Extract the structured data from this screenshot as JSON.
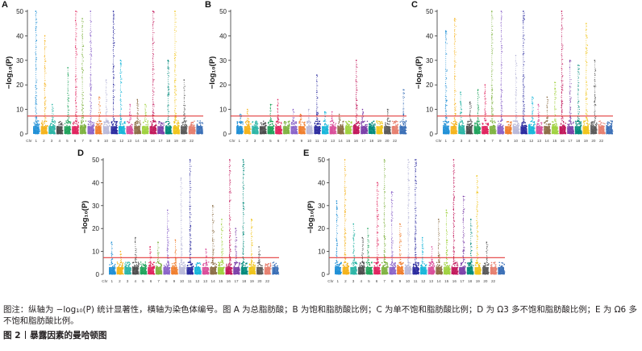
{
  "caption": "图注：纵轴为 −log₁₀(P) 统计显著性，横轴为染色体编号。图 A 为总脂肪酸；B 为饱和脂肪酸比例；C 为单不饱和脂肪酸比例；D 为 Ω3 多不饱和脂肪酸比例；E 为 Ω6 多不饱和脂肪酸比例。",
  "figure_label": "图 2",
  "figure_title": "暴露因素的曼哈顿图",
  "colors": {
    "threshold": "#e23b3b",
    "palette": [
      "#1f8fd6",
      "#f5b21b",
      "#2bb5a6",
      "#4c4c4c",
      "#1fa35c",
      "#e0245e",
      "#7fb241",
      "#8a63c9",
      "#f07e2e",
      "#b9b9d9",
      "#2a2a9e",
      "#17b6d9",
      "#d94e9a",
      "#8c6e46",
      "#9fd13e",
      "#c2185b",
      "#7b3fa8",
      "#00897b",
      "#f0c419",
      "#5a5a5a",
      "#e67e6e",
      "#3b6fb6"
    ]
  },
  "chart_data": [
    {
      "type": "scatter",
      "panel": "A",
      "ylabel": "−log₁₀(P)",
      "ylim": [
        0,
        50
      ],
      "yticks": [
        "0",
        "10",
        "20",
        "30",
        "40",
        "50"
      ],
      "xticks": [
        "Chr",
        "1",
        "2",
        "3",
        "4",
        "5",
        "6",
        "7",
        "8",
        "9",
        "10",
        "11",
        "12",
        "13",
        "14",
        "15",
        "16",
        "17",
        "18",
        "19",
        "20",
        "22"
      ],
      "threshold": 7.3,
      "peaks": [
        {
          "chr": 1,
          "value": 50
        },
        {
          "chr": 2,
          "value": 40
        },
        {
          "chr": 3,
          "value": 12
        },
        {
          "chr": 5,
          "value": 27
        },
        {
          "chr": 6,
          "value": 50
        },
        {
          "chr": 7,
          "value": 47
        },
        {
          "chr": 8,
          "value": 50
        },
        {
          "chr": 9,
          "value": 15
        },
        {
          "chr": 10,
          "value": 22
        },
        {
          "chr": 11,
          "value": 50
        },
        {
          "chr": 12,
          "value": 30
        },
        {
          "chr": 13,
          "value": 12
        },
        {
          "chr": 14,
          "value": 14
        },
        {
          "chr": 15,
          "value": 12
        },
        {
          "chr": 16,
          "value": 50
        },
        {
          "chr": 18,
          "value": 30
        },
        {
          "chr": 19,
          "value": 50
        },
        {
          "chr": 20,
          "value": 22
        }
      ]
    },
    {
      "type": "scatter",
      "panel": "B",
      "ylabel": "−log₁₀(P)",
      "ylim": [
        0,
        50
      ],
      "yticks": [
        "0",
        "10",
        "20",
        "30",
        "40",
        "50"
      ],
      "xticks": [
        "Chr",
        "1",
        "2",
        "3",
        "4",
        "5",
        "6",
        "7",
        "8",
        "9",
        "10",
        "11",
        "12",
        "13",
        "14",
        "15",
        "16",
        "17",
        "18",
        "19",
        "20",
        "22"
      ],
      "threshold": 7.3,
      "peaks": [
        {
          "chr": 1,
          "value": 8
        },
        {
          "chr": 2,
          "value": 10
        },
        {
          "chr": 5,
          "value": 12
        },
        {
          "chr": 6,
          "value": 14
        },
        {
          "chr": 8,
          "value": 10
        },
        {
          "chr": 9,
          "value": 8
        },
        {
          "chr": 10,
          "value": 10
        },
        {
          "chr": 11,
          "value": 24
        },
        {
          "chr": 12,
          "value": 9
        },
        {
          "chr": 13,
          "value": 9
        },
        {
          "chr": 14,
          "value": 8
        },
        {
          "chr": 16,
          "value": 30
        },
        {
          "chr": 17,
          "value": 10
        },
        {
          "chr": 20,
          "value": 10
        },
        {
          "chr": 22,
          "value": 18
        }
      ]
    },
    {
      "type": "scatter",
      "panel": "C",
      "ylabel": "−log₁₀(P)",
      "ylim": [
        0,
        50
      ],
      "yticks": [
        "0",
        "10",
        "20",
        "30",
        "40",
        "50"
      ],
      "xticks": [
        "Chr",
        "1",
        "2",
        "3",
        "4",
        "5",
        "6",
        "7",
        "8",
        "9",
        "10",
        "11",
        "12",
        "13",
        "14",
        "15",
        "16",
        "17",
        "18",
        "19",
        "20",
        "22"
      ],
      "threshold": 7.3,
      "peaks": [
        {
          "chr": 1,
          "value": 42
        },
        {
          "chr": 2,
          "value": 47
        },
        {
          "chr": 3,
          "value": 17
        },
        {
          "chr": 4,
          "value": 13
        },
        {
          "chr": 5,
          "value": 18
        },
        {
          "chr": 6,
          "value": 20
        },
        {
          "chr": 7,
          "value": 50
        },
        {
          "chr": 8,
          "value": 50
        },
        {
          "chr": 10,
          "value": 32
        },
        {
          "chr": 11,
          "value": 50
        },
        {
          "chr": 12,
          "value": 15
        },
        {
          "chr": 13,
          "value": 12
        },
        {
          "chr": 14,
          "value": 15
        },
        {
          "chr": 15,
          "value": 21
        },
        {
          "chr": 16,
          "value": 50
        },
        {
          "chr": 17,
          "value": 30
        },
        {
          "chr": 18,
          "value": 28
        },
        {
          "chr": 19,
          "value": 45
        },
        {
          "chr": 20,
          "value": 30
        }
      ]
    },
    {
      "type": "scatter",
      "panel": "D",
      "ylabel": "−log₁₀(P)",
      "ylim": [
        0,
        50
      ],
      "yticks": [
        "0",
        "10",
        "20",
        "30",
        "40",
        "50"
      ],
      "xticks": [
        "Chr",
        "1",
        "2",
        "3",
        "4",
        "5",
        "6",
        "7",
        "8",
        "9",
        "10",
        "11",
        "12",
        "13",
        "14",
        "15",
        "16",
        "17",
        "18",
        "19",
        "20",
        "22"
      ],
      "threshold": 7.3,
      "peaks": [
        {
          "chr": 1,
          "value": 14
        },
        {
          "chr": 2,
          "value": 10
        },
        {
          "chr": 4,
          "value": 16
        },
        {
          "chr": 6,
          "value": 12
        },
        {
          "chr": 7,
          "value": 14
        },
        {
          "chr": 8,
          "value": 28
        },
        {
          "chr": 9,
          "value": 15
        },
        {
          "chr": 10,
          "value": 42
        },
        {
          "chr": 11,
          "value": 50
        },
        {
          "chr": 13,
          "value": 11
        },
        {
          "chr": 14,
          "value": 30
        },
        {
          "chr": 15,
          "value": 24
        },
        {
          "chr": 16,
          "value": 50
        },
        {
          "chr": 17,
          "value": 20
        },
        {
          "chr": 18,
          "value": 50
        },
        {
          "chr": 19,
          "value": 24
        },
        {
          "chr": 20,
          "value": 12
        }
      ]
    },
    {
      "type": "scatter",
      "panel": "E",
      "ylabel": "−log₁₀(P)",
      "ylim": [
        0,
        50
      ],
      "yticks": [
        "0",
        "10",
        "20",
        "30",
        "40",
        "50"
      ],
      "xticks": [
        "Chr",
        "1",
        "2",
        "3",
        "4",
        "5",
        "6",
        "7",
        "8",
        "9",
        "10",
        "11",
        "12",
        "13",
        "14",
        "15",
        "16",
        "17",
        "18",
        "19",
        "20",
        "22"
      ],
      "threshold": 7.3,
      "peaks": [
        {
          "chr": 1,
          "value": 32
        },
        {
          "chr": 2,
          "value": 50
        },
        {
          "chr": 3,
          "value": 22
        },
        {
          "chr": 4,
          "value": 16
        },
        {
          "chr": 5,
          "value": 20
        },
        {
          "chr": 6,
          "value": 40
        },
        {
          "chr": 7,
          "value": 50
        },
        {
          "chr": 8,
          "value": 36
        },
        {
          "chr": 9,
          "value": 22
        },
        {
          "chr": 10,
          "value": 50
        },
        {
          "chr": 11,
          "value": 50
        },
        {
          "chr": 12,
          "value": 16
        },
        {
          "chr": 13,
          "value": 12
        },
        {
          "chr": 14,
          "value": 24
        },
        {
          "chr": 15,
          "value": 28
        },
        {
          "chr": 16,
          "value": 50
        },
        {
          "chr": 17,
          "value": 34
        },
        {
          "chr": 18,
          "value": 24
        },
        {
          "chr": 19,
          "value": 43
        },
        {
          "chr": 20,
          "value": 14
        }
      ]
    }
  ]
}
